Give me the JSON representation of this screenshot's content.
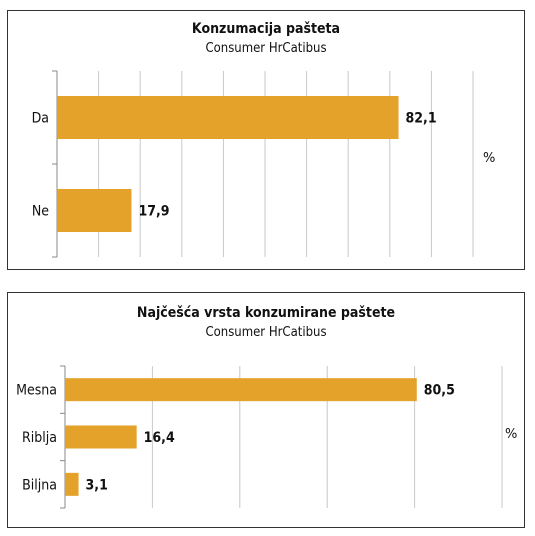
{
  "chart_data": [
    {
      "type": "bar",
      "orientation": "horizontal",
      "title": "Konzumacija pašteta",
      "subtitle": "Consumer HrCatibus",
      "unit": "%",
      "categories": [
        "Da",
        "Ne"
      ],
      "values": [
        82.1,
        17.9
      ],
      "value_labels": [
        "82,1",
        "17,9"
      ],
      "xlim": [
        0,
        100
      ],
      "grid": true,
      "bar_color": "#E5A22A"
    },
    {
      "type": "bar",
      "orientation": "horizontal",
      "title": "Najčešća vrsta konzumirane paštete",
      "subtitle": "Consumer HrCatibus",
      "unit": "%",
      "categories": [
        "Mesna",
        "Riblja",
        "Biljna"
      ],
      "values": [
        80.5,
        16.4,
        3.1
      ],
      "value_labels": [
        "80,5",
        "16,4",
        "3,1"
      ],
      "xlim": [
        0,
        100
      ],
      "grid": true,
      "bar_color": "#E5A22A"
    }
  ]
}
